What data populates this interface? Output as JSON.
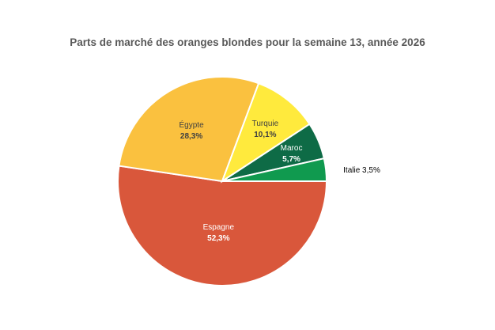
{
  "chart_data": {
    "type": "pie",
    "title": "Parts de marché des oranges blondes pour la semaine 13, année 2026",
    "slices": [
      {
        "name": "Espagne",
        "value": 52.3,
        "value_label": "52,3%",
        "color": "#D9573B"
      },
      {
        "name": "Égypte",
        "value": 28.3,
        "value_label": "28,3%",
        "color": "#FAC13F"
      },
      {
        "name": "Turquie",
        "value": 10.1,
        "value_label": "10,1%",
        "color": "#FFEA3D"
      },
      {
        "name": "Maroc",
        "value": 5.7,
        "value_label": "5,7%",
        "color": "#0E6B46"
      },
      {
        "name": "Italie",
        "value": 3.5,
        "value_label": "Italie 3,5%",
        "color": "#109A4F"
      }
    ],
    "legend": "none"
  }
}
